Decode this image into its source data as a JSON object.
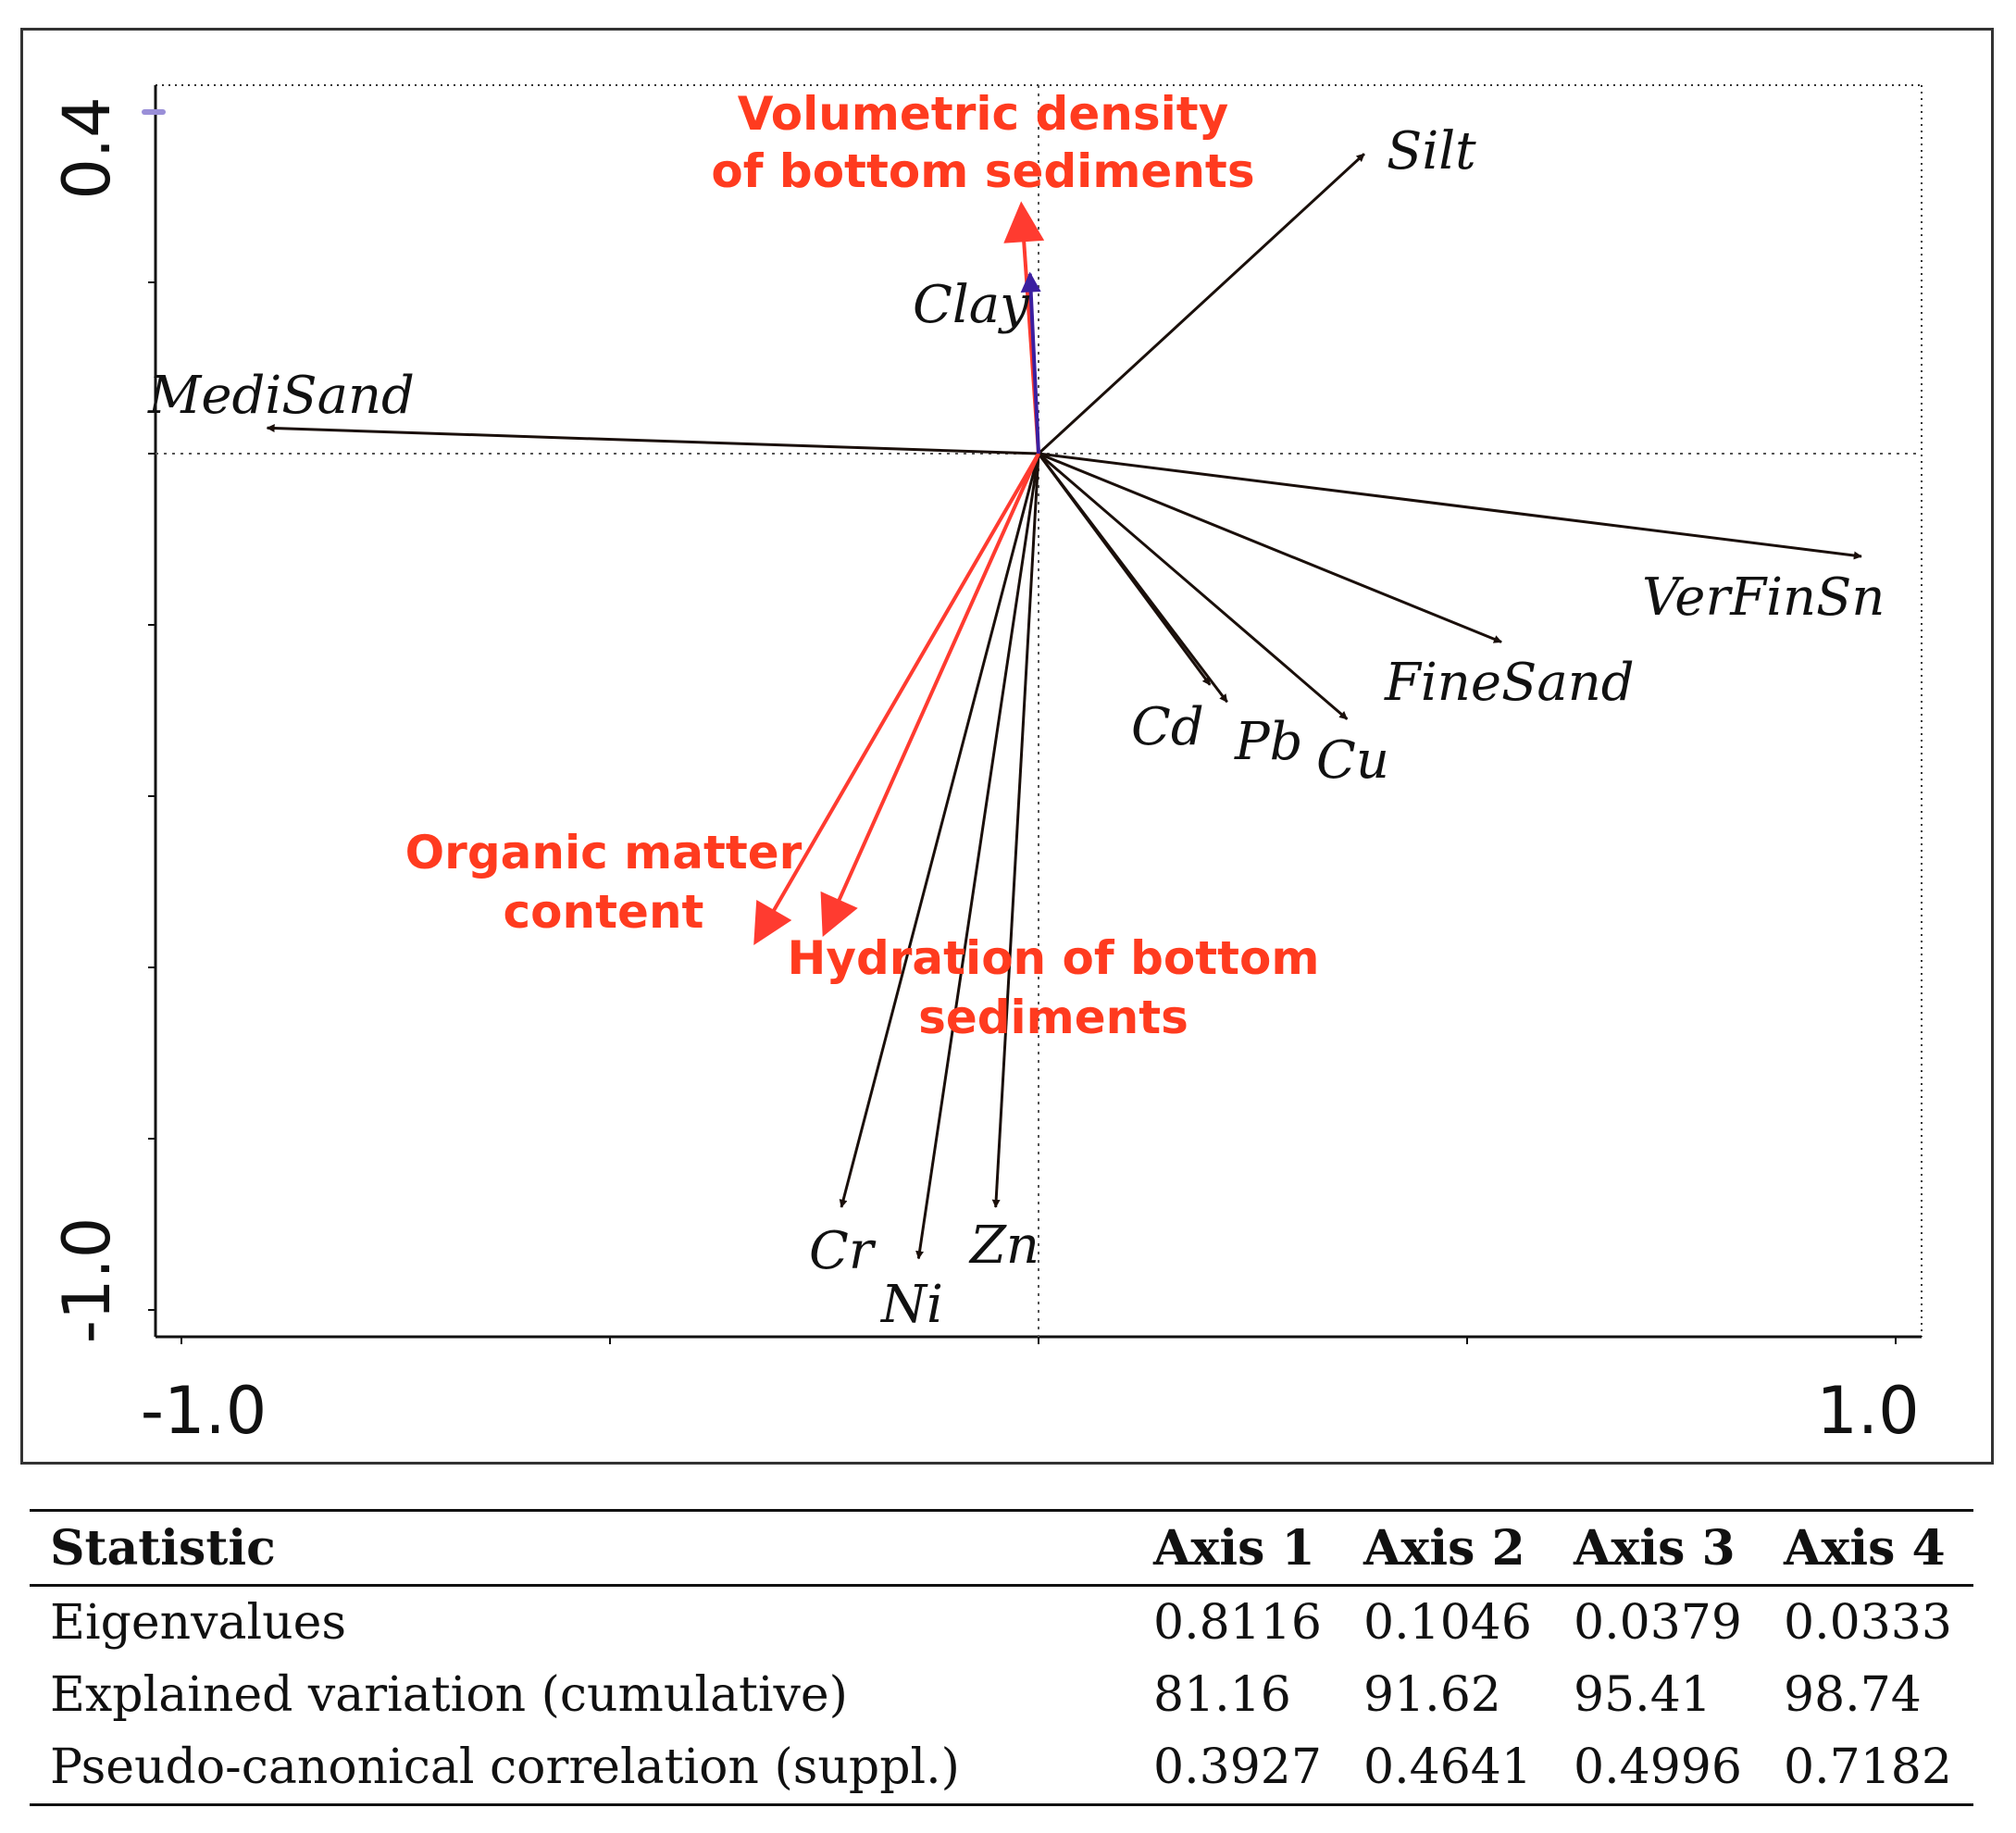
{
  "chart_data": {
    "type": "biplot",
    "x_axis": {
      "min": -1.0,
      "max": 1.0,
      "tick_labels": [
        "-1.0",
        "1.0"
      ]
    },
    "y_axis": {
      "min": -1.0,
      "max": 0.4,
      "tick_labels": [
        "0.4",
        "-1.0"
      ]
    },
    "species_arrows": [
      {
        "name": "Silt",
        "x": 0.38,
        "y": 0.35
      },
      {
        "name": "Clay",
        "x": -0.01,
        "y": 0.21
      },
      {
        "name": "MediSand",
        "x": -0.9,
        "y": 0.03
      },
      {
        "name": "VerFinSn",
        "x": 0.96,
        "y": -0.12
      },
      {
        "name": "FineSand",
        "x": 0.54,
        "y": -0.22
      },
      {
        "name": "Cd",
        "x": 0.2,
        "y": -0.27
      },
      {
        "name": "Pb",
        "x": 0.22,
        "y": -0.29
      },
      {
        "name": "Cu",
        "x": 0.36,
        "y": -0.31
      },
      {
        "name": "Cr",
        "x": -0.23,
        "y": -0.88
      },
      {
        "name": "Ni",
        "x": -0.14,
        "y": -0.94
      },
      {
        "name": "Zn",
        "x": -0.05,
        "y": -0.88
      }
    ],
    "supplementary_arrows": [
      {
        "name": "Volumetric density of bottom sediments",
        "lines": [
          "Volumetric density",
          "of bottom sediments"
        ],
        "x": -0.02,
        "y": 0.29
      },
      {
        "name": "Organic matter content",
        "lines": [
          "Organic matter",
          "content"
        ],
        "x": -0.33,
        "y": -0.57
      },
      {
        "name": "Hydration of bottom sediments",
        "lines": [
          "Hydration of bottom",
          "sediments"
        ],
        "x": -0.25,
        "y": -0.56
      }
    ],
    "colors": {
      "species": "#1a0f0a",
      "supplementary": "#ff3b30",
      "supplementary_label": "#ff3b1f",
      "clay": "#3b1fa0"
    }
  },
  "table": {
    "headers": [
      "Statistic",
      "Axis 1",
      "Axis  2",
      "Axis 3",
      "Axis  4"
    ],
    "rows": [
      [
        "Eigenvalues",
        "0.8116",
        "0.1046",
        "0.0379",
        "0.0333"
      ],
      [
        "Explained variation (cumulative)",
        "81.16",
        "91.62",
        "95.41",
        "98.74"
      ],
      [
        "Pseudo-canonical correlation (suppl.)",
        "0.3927",
        "0.4641",
        "0.4996",
        "0.7182"
      ]
    ]
  }
}
